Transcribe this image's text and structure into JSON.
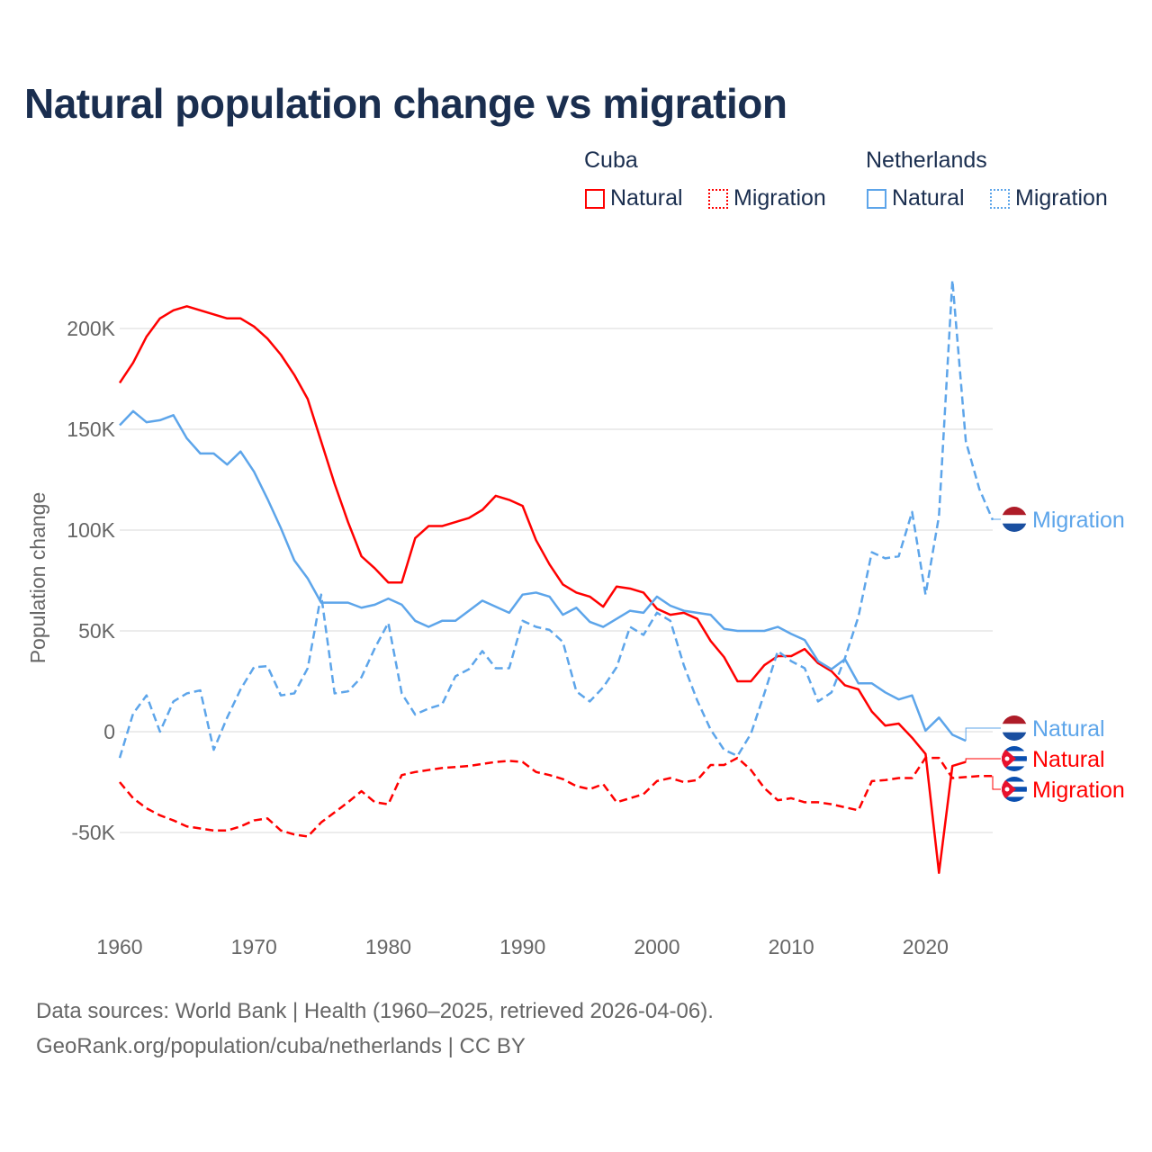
{
  "title": "Natural population change vs migration",
  "legend": {
    "groups": [
      {
        "name": "Cuba",
        "color": "#ff0000",
        "items": [
          "Natural",
          "Migration"
        ]
      },
      {
        "name": "Netherlands",
        "color": "#5da5ea",
        "items": [
          "Natural",
          "Migration"
        ]
      }
    ]
  },
  "footer": {
    "line1": "Data sources: World Bank | Health (1960–2025, retrieved 2026-04-06).",
    "line2": "GeoRank.org/population/cuba/netherlands | CC BY"
  },
  "chart_data": {
    "type": "line",
    "title": "Natural population change vs migration",
    "xlabel": "",
    "ylabel": "Population change",
    "xlim": [
      1960,
      2025
    ],
    "ylim": [
      -85000,
      235000
    ],
    "x_ticks": [
      1960,
      1970,
      1980,
      1990,
      2000,
      2010,
      2020
    ],
    "x_tick_labels": [
      "1960",
      "1970",
      "1980",
      "1990",
      "2000",
      "2010",
      "2020"
    ],
    "y_ticks": [
      -50000,
      0,
      50000,
      100000,
      150000,
      200000
    ],
    "y_tick_labels": [
      "-50K",
      "0",
      "50K",
      "100K",
      "150K",
      "200K"
    ],
    "grid": true,
    "legend_placement": "top-right",
    "series": [
      {
        "name": "Cuba Natural",
        "label": "Natural",
        "country": "Cuba",
        "flag": "cuba",
        "color": "#ff0000",
        "dash": false,
        "start": 1960,
        "values": [
          173,
          183,
          196,
          205,
          209,
          211,
          209,
          207,
          205,
          205,
          201,
          195,
          187,
          177,
          165,
          144,
          123,
          104,
          87,
          81,
          74,
          74,
          96,
          102,
          102,
          104,
          106,
          110,
          117,
          115,
          112,
          95,
          83,
          73,
          69,
          67,
          62,
          72,
          71,
          69,
          61,
          58,
          59,
          56,
          45,
          37,
          25,
          25,
          33,
          37.5,
          37.5,
          41,
          34,
          30,
          23,
          21,
          10,
          3,
          4,
          -3,
          -11,
          -70,
          -17,
          -15
        ]
      },
      {
        "name": "Cuba Migration",
        "label": "Migration",
        "country": "Cuba",
        "flag": "cuba",
        "color": "#ff0000",
        "dash": true,
        "start": 1960,
        "values": [
          -25,
          -33,
          -38,
          -41.5,
          -44,
          -47,
          -48,
          -49,
          -49,
          -47,
          -44,
          -43,
          -49,
          -51,
          -52,
          -45,
          -40,
          -35,
          -29.5,
          -35,
          -36,
          -21.5,
          -20,
          -19,
          -18,
          -17.5,
          -17,
          -16,
          -15,
          -14.5,
          -15,
          -20,
          -21.5,
          -23.5,
          -27,
          -28.5,
          -26,
          -35,
          -33,
          -31,
          -24.5,
          -23,
          -25,
          -24,
          -16.5,
          -16.5,
          -13,
          -19,
          -28,
          -34,
          -33,
          -35,
          -35,
          -36,
          -37.5,
          -39,
          -24.5,
          -24,
          -23,
          -23,
          -13,
          -13,
          -23,
          -22.5,
          -22,
          -22
        ]
      },
      {
        "name": "Netherlands Natural",
        "label": "Natural",
        "country": "Netherlands",
        "flag": "netherlands",
        "color": "#5da5ea",
        "dash": false,
        "start": 1960,
        "values": [
          152,
          159,
          153.5,
          154.5,
          157,
          145.5,
          138,
          138,
          132.5,
          139,
          129,
          115.5,
          101,
          85,
          76,
          64,
          64,
          64,
          61.5,
          63,
          66,
          63,
          55,
          52,
          55,
          55,
          60,
          65,
          62,
          59,
          68,
          69,
          67,
          58,
          61.5,
          54.5,
          52,
          56,
          60,
          59,
          67,
          62.5,
          60,
          59,
          58,
          51,
          50,
          50,
          50,
          52,
          48.5,
          45.5,
          35,
          31,
          36,
          24,
          24,
          19.5,
          16,
          18,
          0.5,
          7,
          -1.5,
          -4.5
        ]
      },
      {
        "name": "Netherlands Migration",
        "label": "Migration",
        "country": "Netherlands",
        "flag": "netherlands",
        "color": "#5da5ea",
        "dash": true,
        "start": 1960,
        "values": [
          -13,
          9,
          18,
          0,
          15,
          19,
          20.5,
          -9,
          7,
          21,
          32,
          32.5,
          18,
          19,
          31.5,
          68,
          19,
          20,
          27,
          41.5,
          54,
          19,
          8.5,
          11.5,
          13.5,
          27.5,
          31,
          40,
          31.5,
          31.5,
          55,
          52,
          50.5,
          44.5,
          20,
          15,
          22,
          32,
          52,
          48,
          59,
          55,
          33,
          15.5,
          1,
          -9,
          -12,
          -1,
          19,
          40,
          35,
          31.5,
          15,
          19.5,
          36.5,
          57,
          89,
          86,
          87,
          109,
          68,
          107,
          224,
          144,
          120.5,
          105
        ]
      }
    ],
    "units_note": "values in thousands"
  }
}
